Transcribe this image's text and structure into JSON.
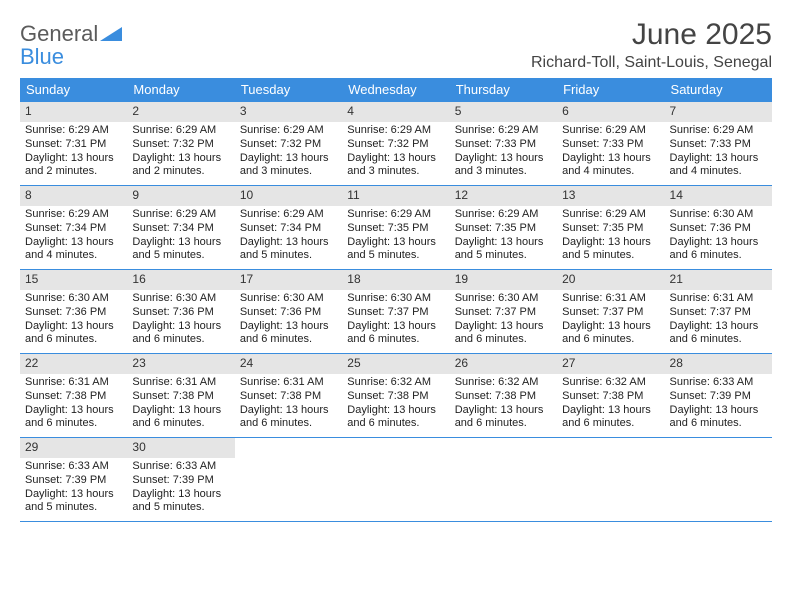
{
  "brand": {
    "part1": "General",
    "part2": "Blue",
    "part1_color": "#5b5b5b",
    "part2_color": "#3a8dde"
  },
  "title": "June 2025",
  "location": "Richard-Toll, Saint-Louis, Senegal",
  "colors": {
    "header_bg": "#3a8dde",
    "header_text": "#ffffff",
    "daynum_bg": "#e5e5e5",
    "week_border": "#3a8dde",
    "page_bg": "#ffffff",
    "text": "#222222"
  },
  "weekdays": [
    "Sunday",
    "Monday",
    "Tuesday",
    "Wednesday",
    "Thursday",
    "Friday",
    "Saturday"
  ],
  "weeks": [
    [
      {
        "n": "1",
        "sunrise": "Sunrise: 6:29 AM",
        "sunset": "Sunset: 7:31 PM",
        "day": "Daylight: 13 hours and 2 minutes."
      },
      {
        "n": "2",
        "sunrise": "Sunrise: 6:29 AM",
        "sunset": "Sunset: 7:32 PM",
        "day": "Daylight: 13 hours and 2 minutes."
      },
      {
        "n": "3",
        "sunrise": "Sunrise: 6:29 AM",
        "sunset": "Sunset: 7:32 PM",
        "day": "Daylight: 13 hours and 3 minutes."
      },
      {
        "n": "4",
        "sunrise": "Sunrise: 6:29 AM",
        "sunset": "Sunset: 7:32 PM",
        "day": "Daylight: 13 hours and 3 minutes."
      },
      {
        "n": "5",
        "sunrise": "Sunrise: 6:29 AM",
        "sunset": "Sunset: 7:33 PM",
        "day": "Daylight: 13 hours and 3 minutes."
      },
      {
        "n": "6",
        "sunrise": "Sunrise: 6:29 AM",
        "sunset": "Sunset: 7:33 PM",
        "day": "Daylight: 13 hours and 4 minutes."
      },
      {
        "n": "7",
        "sunrise": "Sunrise: 6:29 AM",
        "sunset": "Sunset: 7:33 PM",
        "day": "Daylight: 13 hours and 4 minutes."
      }
    ],
    [
      {
        "n": "8",
        "sunrise": "Sunrise: 6:29 AM",
        "sunset": "Sunset: 7:34 PM",
        "day": "Daylight: 13 hours and 4 minutes."
      },
      {
        "n": "9",
        "sunrise": "Sunrise: 6:29 AM",
        "sunset": "Sunset: 7:34 PM",
        "day": "Daylight: 13 hours and 5 minutes."
      },
      {
        "n": "10",
        "sunrise": "Sunrise: 6:29 AM",
        "sunset": "Sunset: 7:34 PM",
        "day": "Daylight: 13 hours and 5 minutes."
      },
      {
        "n": "11",
        "sunrise": "Sunrise: 6:29 AM",
        "sunset": "Sunset: 7:35 PM",
        "day": "Daylight: 13 hours and 5 minutes."
      },
      {
        "n": "12",
        "sunrise": "Sunrise: 6:29 AM",
        "sunset": "Sunset: 7:35 PM",
        "day": "Daylight: 13 hours and 5 minutes."
      },
      {
        "n": "13",
        "sunrise": "Sunrise: 6:29 AM",
        "sunset": "Sunset: 7:35 PM",
        "day": "Daylight: 13 hours and 5 minutes."
      },
      {
        "n": "14",
        "sunrise": "Sunrise: 6:30 AM",
        "sunset": "Sunset: 7:36 PM",
        "day": "Daylight: 13 hours and 6 minutes."
      }
    ],
    [
      {
        "n": "15",
        "sunrise": "Sunrise: 6:30 AM",
        "sunset": "Sunset: 7:36 PM",
        "day": "Daylight: 13 hours and 6 minutes."
      },
      {
        "n": "16",
        "sunrise": "Sunrise: 6:30 AM",
        "sunset": "Sunset: 7:36 PM",
        "day": "Daylight: 13 hours and 6 minutes."
      },
      {
        "n": "17",
        "sunrise": "Sunrise: 6:30 AM",
        "sunset": "Sunset: 7:36 PM",
        "day": "Daylight: 13 hours and 6 minutes."
      },
      {
        "n": "18",
        "sunrise": "Sunrise: 6:30 AM",
        "sunset": "Sunset: 7:37 PM",
        "day": "Daylight: 13 hours and 6 minutes."
      },
      {
        "n": "19",
        "sunrise": "Sunrise: 6:30 AM",
        "sunset": "Sunset: 7:37 PM",
        "day": "Daylight: 13 hours and 6 minutes."
      },
      {
        "n": "20",
        "sunrise": "Sunrise: 6:31 AM",
        "sunset": "Sunset: 7:37 PM",
        "day": "Daylight: 13 hours and 6 minutes."
      },
      {
        "n": "21",
        "sunrise": "Sunrise: 6:31 AM",
        "sunset": "Sunset: 7:37 PM",
        "day": "Daylight: 13 hours and 6 minutes."
      }
    ],
    [
      {
        "n": "22",
        "sunrise": "Sunrise: 6:31 AM",
        "sunset": "Sunset: 7:38 PM",
        "day": "Daylight: 13 hours and 6 minutes."
      },
      {
        "n": "23",
        "sunrise": "Sunrise: 6:31 AM",
        "sunset": "Sunset: 7:38 PM",
        "day": "Daylight: 13 hours and 6 minutes."
      },
      {
        "n": "24",
        "sunrise": "Sunrise: 6:31 AM",
        "sunset": "Sunset: 7:38 PM",
        "day": "Daylight: 13 hours and 6 minutes."
      },
      {
        "n": "25",
        "sunrise": "Sunrise: 6:32 AM",
        "sunset": "Sunset: 7:38 PM",
        "day": "Daylight: 13 hours and 6 minutes."
      },
      {
        "n": "26",
        "sunrise": "Sunrise: 6:32 AM",
        "sunset": "Sunset: 7:38 PM",
        "day": "Daylight: 13 hours and 6 minutes."
      },
      {
        "n": "27",
        "sunrise": "Sunrise: 6:32 AM",
        "sunset": "Sunset: 7:38 PM",
        "day": "Daylight: 13 hours and 6 minutes."
      },
      {
        "n": "28",
        "sunrise": "Sunrise: 6:33 AM",
        "sunset": "Sunset: 7:39 PM",
        "day": "Daylight: 13 hours and 6 minutes."
      }
    ],
    [
      {
        "n": "29",
        "sunrise": "Sunrise: 6:33 AM",
        "sunset": "Sunset: 7:39 PM",
        "day": "Daylight: 13 hours and 5 minutes."
      },
      {
        "n": "30",
        "sunrise": "Sunrise: 6:33 AM",
        "sunset": "Sunset: 7:39 PM",
        "day": "Daylight: 13 hours and 5 minutes."
      },
      null,
      null,
      null,
      null,
      null
    ]
  ]
}
